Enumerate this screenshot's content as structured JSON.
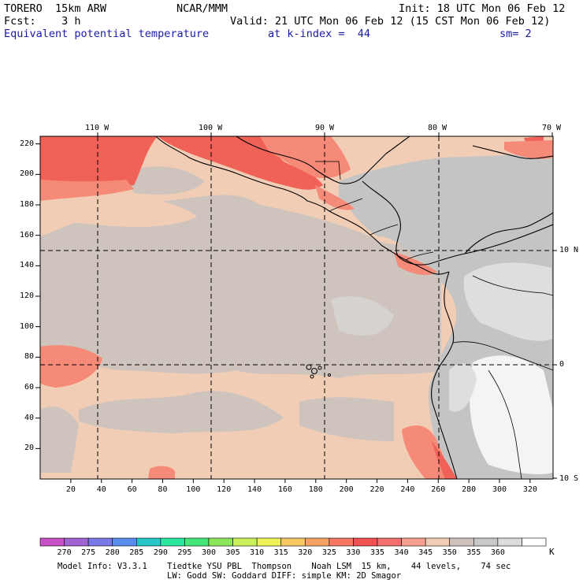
{
  "header": {
    "model": "TORERO  15km ARW",
    "org": "NCAR/MMM",
    "init": "Init: 18 UTC Mon 06 Feb 12",
    "fcst": "Fcst:    3 h",
    "valid": "Valid: 21 UTC Mon 06 Feb 12 (15 CST Mon 06 Feb 12)",
    "field": "Equivalent potential temperature",
    "level": "at k-index =  44",
    "smooth": "sm= 2"
  },
  "axes": {
    "lon_labels": [
      "110 W",
      "100 W",
      "90 W",
      "80 W",
      "70 W"
    ],
    "lat_labels": [
      "10 N",
      "0",
      "10 S"
    ],
    "y_ticks": [
      "220",
      "200",
      "180",
      "160",
      "140",
      "120",
      "100",
      "80",
      "60",
      "40",
      "20"
    ],
    "x_ticks": [
      "20",
      "40",
      "60",
      "80",
      "100",
      "120",
      "140",
      "160",
      "180",
      "200",
      "220",
      "240",
      "260",
      "280",
      "300",
      "320"
    ]
  },
  "colorbar": {
    "labels": [
      "270",
      "275",
      "280",
      "285",
      "290",
      "295",
      "300",
      "305",
      "310",
      "315",
      "320",
      "325",
      "330",
      "335",
      "340",
      "345",
      "350",
      "355",
      "360"
    ],
    "unit": "K",
    "colors": [
      "#c850c8",
      "#a064d2",
      "#7878e6",
      "#5a8cf0",
      "#28c8c8",
      "#28e6a0",
      "#46e678",
      "#8ce65a",
      "#c8f05a",
      "#f0f05a",
      "#f5c864",
      "#f5a064",
      "#f57864",
      "#f05050",
      "#f07070",
      "#f5a08c",
      "#f2cdb6",
      "#cfc4bd",
      "#c8c8c8",
      "#dcdcdc",
      "#ffffff"
    ]
  },
  "footer": {
    "line1": "Model Info: V3.3.1    Tiedtke YSU PBL  Thompson    Noah LSM  15 km,    44 levels,    74 sec",
    "line2": "LW: Godd SW: Goddard DIFF: simple KM: 2D Smagor"
  },
  "map_colors": {
    "ocean_warm": "#f2cdb6",
    "ocean_cool": "#cfc4bd",
    "hot": "#f06258",
    "hot2": "#f58a78",
    "land_grey": "#c4c4c4",
    "land_light": "#dedede",
    "white": "#f4f4f4"
  }
}
